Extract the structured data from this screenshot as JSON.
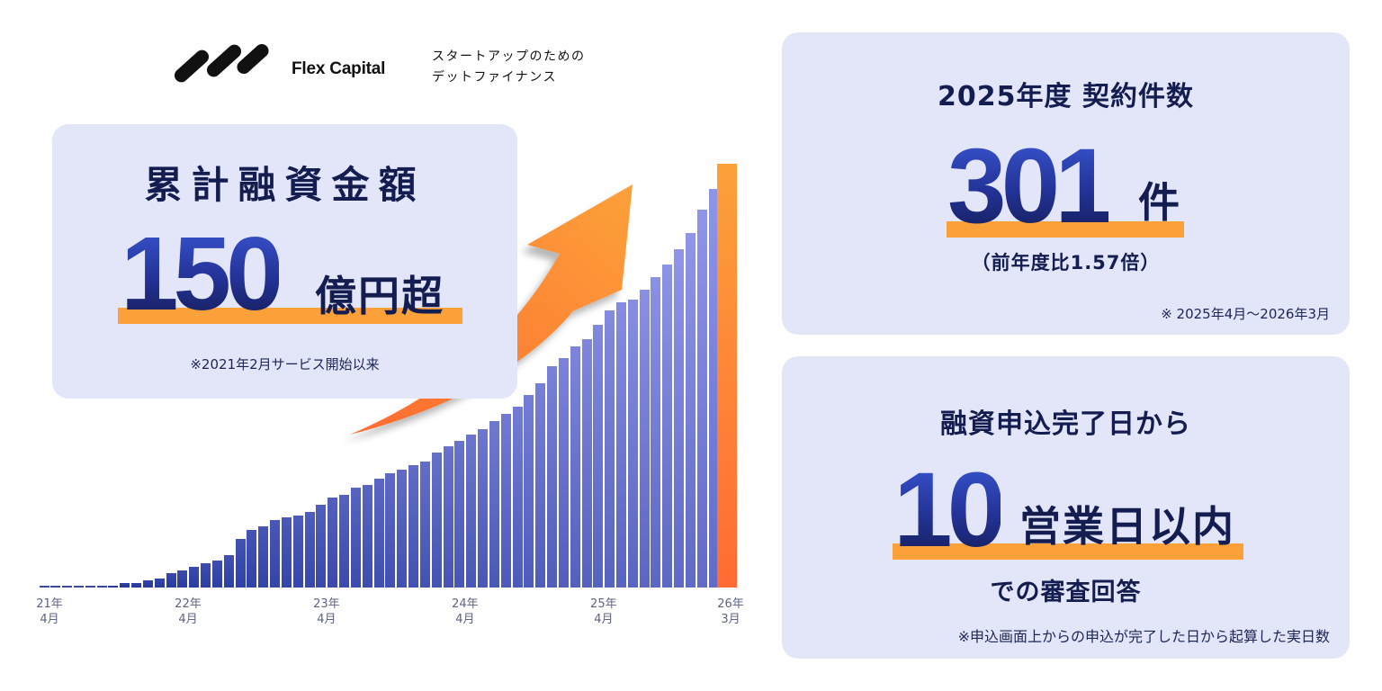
{
  "brand": {
    "name": "Flex Capital",
    "tagline_line1": "スタートアップのための",
    "tagline_line2": "デットファイナンス"
  },
  "total_card": {
    "title": "累計融資金額",
    "value": "150",
    "unit": "億円超",
    "note": "※2021年2月サービス開始以来"
  },
  "contracts_card": {
    "title": "2025年度 契約件数",
    "value": "301",
    "unit": "件",
    "sub": "（前年度比1.57倍）",
    "note": "※ 2025年4月〜2026年3月"
  },
  "review_card": {
    "title": "融資申込完了日から",
    "value": "10",
    "unit": "営業日以内",
    "sub": "での審査回答",
    "note": "※申込画面上からの申込が完了した日から起算した実日数"
  },
  "colors": {
    "navy": "#141d4f",
    "card_bg": "#e3e6f9",
    "highlight": "#fca13a",
    "bar_start": "#1c2f96",
    "bar_end": "#8f95e8",
    "final_bar_top": "#fca13a",
    "final_bar_bottom": "#ff6b35"
  },
  "chart_data": {
    "type": "bar",
    "title": "累計融資金額",
    "xlabel": "",
    "ylabel": "",
    "grid": false,
    "legend": false,
    "note": "Monthly cumulative lending amount from 21年4月 to 26年3月; values are relative bar heights in pixels (final bar highlighted orange ≈ 150億円超)",
    "tick_labels": [
      {
        "index": 0,
        "label": "21年\n4月"
      },
      {
        "index": 12,
        "label": "22年\n4月"
      },
      {
        "index": 24,
        "label": "23年\n4月"
      },
      {
        "index": 36,
        "label": "24年\n4月"
      },
      {
        "index": 48,
        "label": "25年\n4月"
      },
      {
        "index": 59,
        "label": "26年\n3月"
      }
    ],
    "values": [
      0,
      0,
      0,
      0,
      0,
      0,
      2,
      5,
      5,
      8,
      10,
      16,
      19,
      23,
      27,
      30,
      36,
      54,
      64,
      68,
      75,
      78,
      80,
      84,
      92,
      100,
      103,
      111,
      114,
      121,
      127,
      131,
      136,
      140,
      150,
      157,
      163,
      170,
      176,
      185,
      193,
      201,
      214,
      227,
      246,
      255,
      268,
      276,
      292,
      308,
      317,
      320,
      331,
      345,
      359,
      376,
      394,
      420,
      443,
      471
    ],
    "highlight_index": 59
  }
}
